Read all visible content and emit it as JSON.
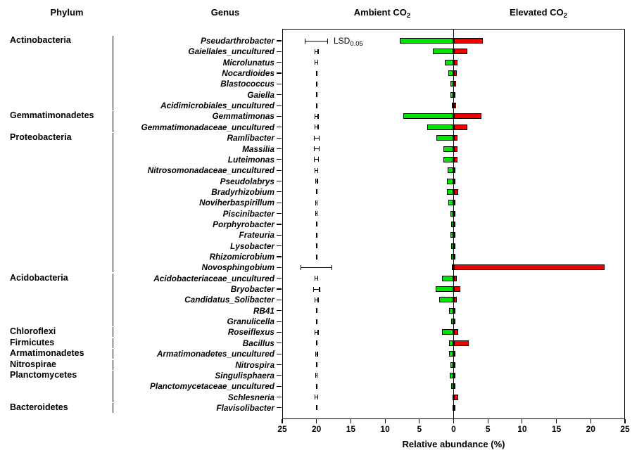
{
  "headers": {
    "phylum": "Phylum",
    "genus": "Genus",
    "ambient_prefix": "Ambient CO",
    "elevated_prefix": "Elevated CO",
    "co2_subscript": "2"
  },
  "lsd_annotation": {
    "prefix": "LSD",
    "subscript": "0.05"
  },
  "colors": {
    "ambient_bar": "#00e600",
    "elevated_bar": "#f20000",
    "axis": "#000000",
    "background": "#ffffff"
  },
  "chart_data": {
    "type": "bar",
    "orientation": "horizontal-diverging",
    "title": "",
    "xlabel": "Relative abundance (%)",
    "axis": {
      "max": 25,
      "tick_labels": [
        "25",
        "20",
        "15",
        "10",
        "5",
        "0",
        "5",
        "10",
        "15",
        "20",
        "25"
      ]
    },
    "legend": [
      {
        "name": "Ambient CO2",
        "color": "#00e600",
        "side": "left"
      },
      {
        "name": "Elevated CO2",
        "color": "#f20000",
        "side": "right"
      }
    ],
    "error_bar_note": "LSD 0.05 error bars plotted at 20 on the left (ambient) axis for each genus",
    "rows": [
      {
        "genus": "Pseudarthrobacter",
        "ambient": 7.9,
        "elevated": 4.3,
        "lsd": 3.4
      },
      {
        "genus": "Gaiellales_uncultured",
        "ambient": 3.0,
        "elevated": 2.0,
        "lsd": 0.6
      },
      {
        "genus": "Microlunatus",
        "ambient": 1.3,
        "elevated": 0.6,
        "lsd": 0.55
      },
      {
        "genus": "Nocardioides",
        "ambient": 0.8,
        "elevated": 0.5,
        "lsd": 0.15
      },
      {
        "genus": "Blastococcus",
        "ambient": 0.5,
        "elevated": 0.35,
        "lsd": 0.15
      },
      {
        "genus": "Gaiella",
        "ambient": 0.5,
        "elevated": 0.2,
        "lsd": 0.15
      },
      {
        "genus": "Acidimicrobiales_uncultured",
        "ambient": 0.25,
        "elevated": 0.35,
        "lsd": 0.15
      },
      {
        "genus": "Gemmatimonas",
        "ambient": 7.3,
        "elevated": 4.1,
        "lsd": 0.6
      },
      {
        "genus": "Gemmatimonadaceae_uncultured",
        "ambient": 3.9,
        "elevated": 2.0,
        "lsd": 0.6
      },
      {
        "genus": "Ramlibacter",
        "ambient": 2.5,
        "elevated": 0.6,
        "lsd": 0.85
      },
      {
        "genus": "Massilia",
        "ambient": 1.45,
        "elevated": 0.55,
        "lsd": 0.85
      },
      {
        "genus": "Luteimonas",
        "ambient": 1.5,
        "elevated": 0.55,
        "lsd": 0.7
      },
      {
        "genus": "Nitrosomonadaceae_uncultured",
        "ambient": 0.9,
        "elevated": 0.15,
        "lsd": 0.5
      },
      {
        "genus": "Pseudolabrys",
        "ambient": 0.95,
        "elevated": 0.25,
        "lsd": 0.4
      },
      {
        "genus": "Bradyrhizobium",
        "ambient": 0.95,
        "elevated": 0.65,
        "lsd": 0.15
      },
      {
        "genus": "Noviherbaspirillum",
        "ambient": 0.8,
        "elevated": 0.1,
        "lsd": 0.35
      },
      {
        "genus": "Piscinibacter",
        "ambient": 0.45,
        "elevated": 0.15,
        "lsd": 0.35
      },
      {
        "genus": "Porphyrobacter",
        "ambient": 0.35,
        "elevated": 0.1,
        "lsd": 0.15
      },
      {
        "genus": "Frateuria",
        "ambient": 0.5,
        "elevated": 0.15,
        "lsd": 0.15
      },
      {
        "genus": "Lysobacter",
        "ambient": 0.35,
        "elevated": 0.1,
        "lsd": 0.15
      },
      {
        "genus": "Rhizomicrobium",
        "ambient": 0.35,
        "elevated": 0.1,
        "lsd": 0.15
      },
      {
        "genus": "Novosphingobium",
        "ambient": 0.25,
        "elevated": 22.0,
        "lsd": 4.6
      },
      {
        "genus": "Acidobacteriaceae_uncultured",
        "ambient": 1.65,
        "elevated": 0.45,
        "lsd": 0.5
      },
      {
        "genus": "Bryobacter",
        "ambient": 2.6,
        "elevated": 0.95,
        "lsd": 1.0
      },
      {
        "genus": "Candidatus_Solibacter",
        "ambient": 2.1,
        "elevated": 0.45,
        "lsd": 0.6
      },
      {
        "genus": "RB41",
        "ambient": 0.65,
        "elevated": 0.15,
        "lsd": 0.15
      },
      {
        "genus": "Granulicella",
        "ambient": 0.35,
        "elevated": 0.1,
        "lsd": 0.15
      },
      {
        "genus": "Roseiflexus",
        "ambient": 1.7,
        "elevated": 0.7,
        "lsd": 0.6
      },
      {
        "genus": "Bacillus",
        "ambient": 0.65,
        "elevated": 2.2,
        "lsd": 0.2
      },
      {
        "genus": "Armatimonadetes_uncultured",
        "ambient": 0.65,
        "elevated": 0.3,
        "lsd": 0.4
      },
      {
        "genus": "Nitrospira",
        "ambient": 0.5,
        "elevated": 0.15,
        "lsd": 0.15
      },
      {
        "genus": "Singulisphaera",
        "ambient": 0.55,
        "elevated": 0.1,
        "lsd": 0.3
      },
      {
        "genus": "Planctomycetaceae_uncultured",
        "ambient": 0.4,
        "elevated": 0.15,
        "lsd": 0.15
      },
      {
        "genus": "Schlesneria",
        "ambient": 0.1,
        "elevated": 0.7,
        "lsd": 0.5
      },
      {
        "genus": "Flavisolibacter",
        "ambient": 0.2,
        "elevated": 0.15,
        "lsd": 0.2
      }
    ],
    "phyla": [
      {
        "name": "Actinobacteria",
        "first_row": 0,
        "last_row": 6
      },
      {
        "name": "Gemmatimonadetes",
        "first_row": 7,
        "last_row": 8
      },
      {
        "name": "Proteobacteria",
        "first_row": 9,
        "last_row": 21
      },
      {
        "name": "Acidobacteria",
        "first_row": 22,
        "last_row": 26
      },
      {
        "name": "Chloroflexi",
        "first_row": 27,
        "last_row": 27
      },
      {
        "name": "Firmicutes",
        "first_row": 28,
        "last_row": 28
      },
      {
        "name": "Armatimonadetes",
        "first_row": 29,
        "last_row": 29
      },
      {
        "name": "Nitrospirae",
        "first_row": 30,
        "last_row": 30
      },
      {
        "name": "Planctomycetes",
        "first_row": 31,
        "last_row": 33
      },
      {
        "name": "Bacteroidetes",
        "first_row": 34,
        "last_row": 34
      }
    ]
  }
}
